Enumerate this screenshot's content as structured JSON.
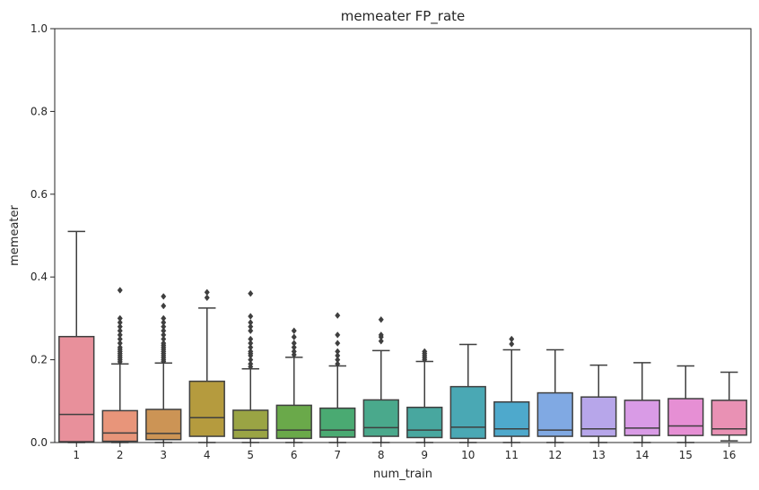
{
  "chart_data": {
    "type": "box",
    "title": "memeater FP_rate",
    "xlabel": "num_train",
    "ylabel": "memeater",
    "ylim": [
      0,
      1
    ],
    "yticks": [
      "0.0",
      "0.2",
      "0.4",
      "0.6",
      "0.8",
      "1.0"
    ],
    "grid": false,
    "categories": [
      "1",
      "2",
      "3",
      "4",
      "5",
      "6",
      "7",
      "8",
      "9",
      "10",
      "11",
      "12",
      "13",
      "14",
      "15",
      "16"
    ],
    "colors": [
      "#e8909b",
      "#e8957a",
      "#cc9455",
      "#b59b3e",
      "#9aa444",
      "#6aa94a",
      "#4aaa72",
      "#4aa98c",
      "#48a79f",
      "#4aa8b4",
      "#4ea9cc",
      "#80a9e3",
      "#b7a6ea",
      "#d99be6",
      "#e68fd4",
      "#e991b4"
    ],
    "boxes": [
      {
        "min": 0.0,
        "q1": 0.002,
        "median": 0.068,
        "q3": 0.256,
        "max": 0.51,
        "outliers": []
      },
      {
        "min": 0.0,
        "q1": 0.003,
        "median": 0.023,
        "q3": 0.077,
        "max": 0.19,
        "outliers": [
          0.195,
          0.2,
          0.205,
          0.21,
          0.215,
          0.22,
          0.225,
          0.23,
          0.24,
          0.25,
          0.26,
          0.27,
          0.28,
          0.29,
          0.3,
          0.368
        ]
      },
      {
        "min": 0.0,
        "q1": 0.007,
        "median": 0.022,
        "q3": 0.08,
        "max": 0.192,
        "outliers": [
          0.196,
          0.2,
          0.205,
          0.21,
          0.215,
          0.22,
          0.225,
          0.23,
          0.235,
          0.24,
          0.25,
          0.26,
          0.27,
          0.28,
          0.29,
          0.3,
          0.33,
          0.353
        ]
      },
      {
        "min": 0.0,
        "q1": 0.015,
        "median": 0.06,
        "q3": 0.148,
        "max": 0.325,
        "outliers": [
          0.35,
          0.363
        ]
      },
      {
        "min": 0.0,
        "q1": 0.01,
        "median": 0.03,
        "q3": 0.078,
        "max": 0.178,
        "outliers": [
          0.183,
          0.19,
          0.2,
          0.21,
          0.215,
          0.22,
          0.23,
          0.24,
          0.25,
          0.27,
          0.28,
          0.29,
          0.305,
          0.36
        ]
      },
      {
        "min": 0.0,
        "q1": 0.01,
        "median": 0.03,
        "q3": 0.09,
        "max": 0.206,
        "outliers": [
          0.212,
          0.22,
          0.23,
          0.24,
          0.255,
          0.27
        ]
      },
      {
        "min": 0.0,
        "q1": 0.013,
        "median": 0.03,
        "q3": 0.083,
        "max": 0.185,
        "outliers": [
          0.19,
          0.2,
          0.21,
          0.22,
          0.24,
          0.26,
          0.307
        ]
      },
      {
        "min": 0.0,
        "q1": 0.015,
        "median": 0.036,
        "q3": 0.103,
        "max": 0.222,
        "outliers": [
          0.245,
          0.255,
          0.26,
          0.297
        ]
      },
      {
        "min": 0.0,
        "q1": 0.012,
        "median": 0.03,
        "q3": 0.085,
        "max": 0.196,
        "outliers": [
          0.2,
          0.205,
          0.21,
          0.215,
          0.22
        ]
      },
      {
        "min": 0.0,
        "q1": 0.01,
        "median": 0.037,
        "q3": 0.135,
        "max": 0.237,
        "outliers": []
      },
      {
        "min": 0.0,
        "q1": 0.015,
        "median": 0.033,
        "q3": 0.098,
        "max": 0.224,
        "outliers": [
          0.238,
          0.25
        ]
      },
      {
        "min": 0.0,
        "q1": 0.015,
        "median": 0.03,
        "q3": 0.12,
        "max": 0.224,
        "outliers": []
      },
      {
        "min": 0.0,
        "q1": 0.015,
        "median": 0.033,
        "q3": 0.11,
        "max": 0.187,
        "outliers": []
      },
      {
        "min": 0.0,
        "q1": 0.017,
        "median": 0.035,
        "q3": 0.102,
        "max": 0.193,
        "outliers": []
      },
      {
        "min": 0.0,
        "q1": 0.017,
        "median": 0.04,
        "q3": 0.106,
        "max": 0.185,
        "outliers": []
      },
      {
        "min": 0.004,
        "q1": 0.018,
        "median": 0.033,
        "q3": 0.102,
        "max": 0.17,
        "outliers": []
      }
    ]
  }
}
